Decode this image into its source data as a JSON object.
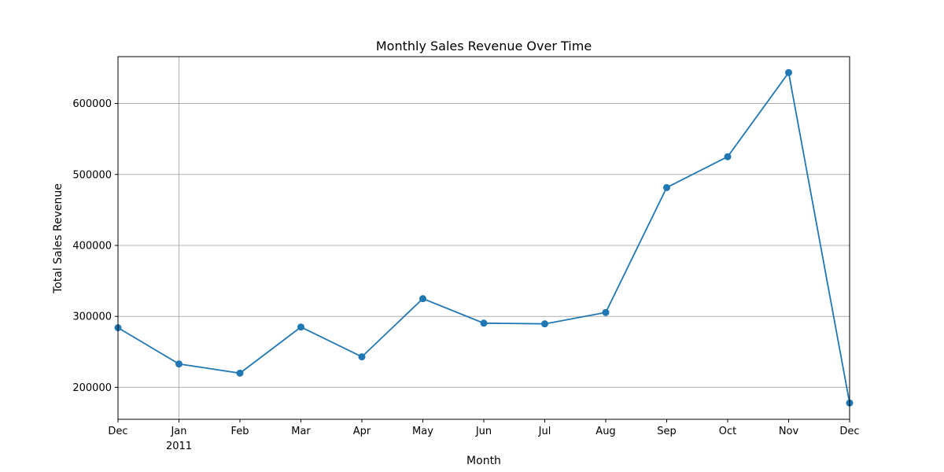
{
  "chart_data": {
    "type": "line",
    "title": "Monthly Sales Revenue Over Time",
    "xlabel": "Month",
    "ylabel": "Total Sales Revenue",
    "x": [
      "2010-12",
      "2011-01",
      "2011-02",
      "2011-03",
      "2011-04",
      "2011-05",
      "2011-06",
      "2011-07",
      "2011-08",
      "2011-09",
      "2011-10",
      "2011-11",
      "2011-12"
    ],
    "x_tick_labels": [
      {
        "label": "Dec",
        "sub": ""
      },
      {
        "label": "Jan",
        "sub": "2011"
      },
      {
        "label": "Feb",
        "sub": ""
      },
      {
        "label": "Mar",
        "sub": ""
      },
      {
        "label": "Apr",
        "sub": ""
      },
      {
        "label": "May",
        "sub": ""
      },
      {
        "label": "Jun",
        "sub": ""
      },
      {
        "label": "Jul",
        "sub": ""
      },
      {
        "label": "Aug",
        "sub": ""
      },
      {
        "label": "Sep",
        "sub": ""
      },
      {
        "label": "Oct",
        "sub": ""
      },
      {
        "label": "Nov",
        "sub": ""
      },
      {
        "label": "Dec",
        "sub": ""
      }
    ],
    "series": [
      {
        "values": [
          284000,
          233000,
          220000,
          285000,
          243000,
          325000,
          290500,
          289500,
          305500,
          481500,
          525000,
          643500,
          178000
        ],
        "color": "#1f77b4"
      }
    ],
    "y_ticks": [
      200000,
      300000,
      400000,
      500000,
      600000
    ],
    "y_tick_labels": [
      "200000",
      "300000",
      "400000",
      "500000",
      "600000"
    ],
    "ylim": [
      155000,
      666000
    ],
    "grid": "on",
    "grid_color": "#b0b0b0"
  }
}
